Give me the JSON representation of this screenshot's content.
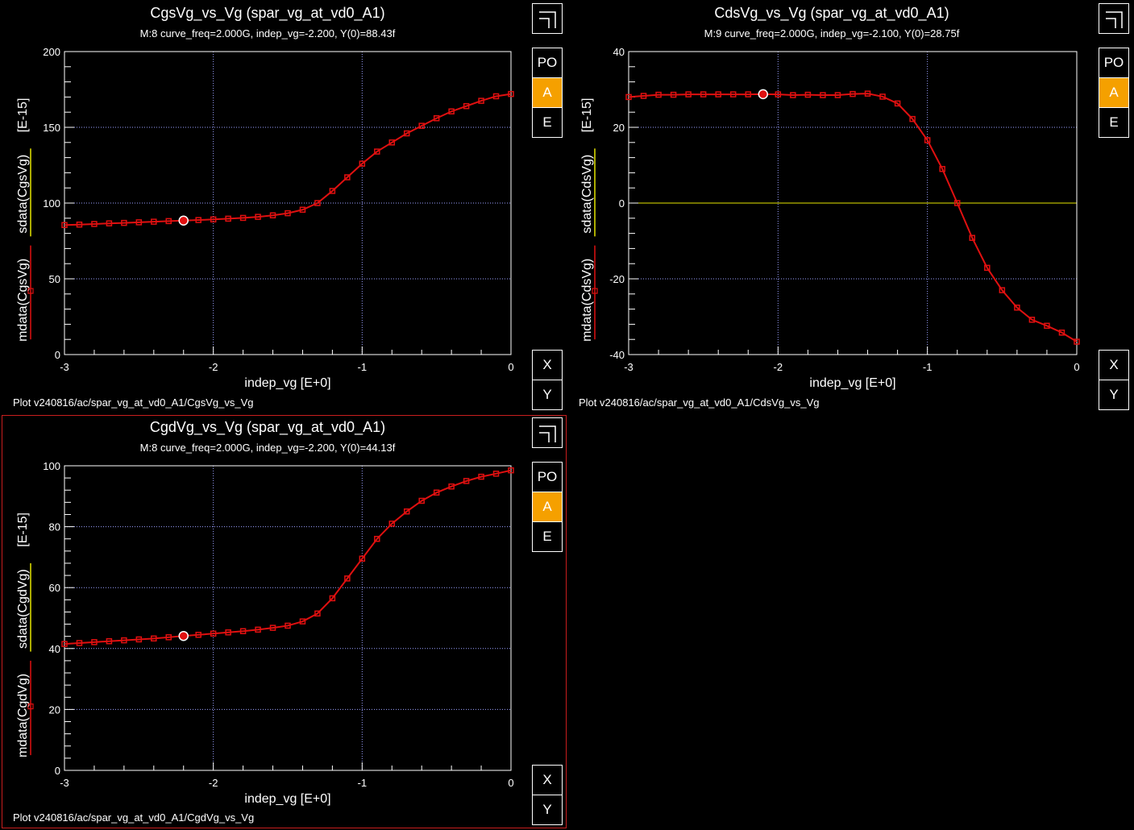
{
  "colors": {
    "curve": "#e01010",
    "grid": "#9aa0ff",
    "zero": "#e6e600",
    "accent": "#f5a000",
    "frame": "#c81e1e"
  },
  "buttons": {
    "po": "PO",
    "a": "A",
    "e": "E",
    "x": "X",
    "y": "Y",
    "corner_icon": "corner-layout-icon"
  },
  "panels": [
    {
      "id": "cgs",
      "title": "CgsVg_vs_Vg (spar_vg_at_vd0_A1)",
      "subtitle": "M:8 curve_freq=2.000G, indep_vg=-2.200, Y(0)=88.43f",
      "xlabel": "indep_vg  [E+0]",
      "ylabel_sdata": "sdata(CgsVg)",
      "ylabel_mdata": "mdata(CgsVg)",
      "ylabel_unit": "[E-15]",
      "path": "Plot v240816/ac/spar_vg_at_vd0_A1/CgsVg_vs_Vg",
      "selected": false
    },
    {
      "id": "cds",
      "title": "CdsVg_vs_Vg (spar_vg_at_vd0_A1)",
      "subtitle": "M:9 curve_freq=2.000G, indep_vg=-2.100, Y(0)=28.75f",
      "xlabel": "indep_vg  [E+0]",
      "ylabel_sdata": "sdata(CdsVg)",
      "ylabel_mdata": "mdata(CdsVg)",
      "ylabel_unit": "[E-15]",
      "path": "Plot v240816/ac/spar_vg_at_vd0_A1/CdsVg_vs_Vg",
      "selected": false
    },
    {
      "id": "cgd",
      "title": "CgdVg_vs_Vg (spar_vg_at_vd0_A1)",
      "subtitle": "M:8 curve_freq=2.000G, indep_vg=-2.200, Y(0)=44.13f",
      "xlabel": "indep_vg  [E+0]",
      "ylabel_sdata": "sdata(CgdVg)",
      "ylabel_mdata": "mdata(CgdVg)",
      "ylabel_unit": "[E-15]",
      "path": "Plot v240816/ac/spar_vg_at_vd0_A1/CgdVg_vs_Vg",
      "selected": true
    }
  ],
  "chart_data": [
    {
      "type": "line",
      "title": "CgsVg_vs_Vg (spar_vg_at_vd0_A1)",
      "xlabel": "indep_vg  [E+0]",
      "ylabel": "sdata(CgsVg) mdata(CgsVg) [E-15]",
      "xlim": [
        -3,
        0
      ],
      "ylim": [
        0,
        200
      ],
      "xticks": [
        -3,
        -2,
        -1,
        0
      ],
      "yticks": [
        0,
        50,
        100,
        150,
        200
      ],
      "grid": true,
      "marker": {
        "x": -2.2,
        "y": 88.43
      },
      "x": [
        -3,
        -2.9,
        -2.8,
        -2.7,
        -2.6,
        -2.5,
        -2.4,
        -2.3,
        -2.2,
        -2.1,
        -2,
        -1.9,
        -1.8,
        -1.7,
        -1.6,
        -1.5,
        -1.4,
        -1.3,
        -1.2,
        -1.1,
        -1,
        -0.9,
        -0.8,
        -0.7,
        -0.6,
        -0.5,
        -0.4,
        -0.3,
        -0.2,
        -0.1,
        0
      ],
      "values": [
        85.5,
        85.8,
        86.2,
        86.6,
        86.9,
        87.3,
        87.7,
        88.1,
        88.43,
        88.8,
        89.2,
        89.7,
        90.2,
        90.9,
        91.9,
        93.3,
        95.6,
        100,
        108,
        117,
        126,
        134,
        140,
        146,
        151,
        156,
        160.5,
        164,
        167.5,
        170.5,
        172
      ]
    },
    {
      "type": "line",
      "title": "CdsVg_vs_Vg (spar_vg_at_vd0_A1)",
      "xlabel": "indep_vg  [E+0]",
      "ylabel": "sdata(CdsVg) mdata(CdsVg) [E-15]",
      "xlim": [
        -3,
        0
      ],
      "ylim": [
        -40,
        40
      ],
      "xticks": [
        -3,
        -2,
        -1,
        0
      ],
      "yticks": [
        -40,
        -20,
        0,
        20,
        40
      ],
      "grid": true,
      "marker": {
        "x": -2.1,
        "y": 28.75
      },
      "x": [
        -3,
        -2.9,
        -2.8,
        -2.7,
        -2.6,
        -2.5,
        -2.4,
        -2.3,
        -2.2,
        -2.1,
        -2,
        -1.9,
        -1.8,
        -1.7,
        -1.6,
        -1.5,
        -1.4,
        -1.3,
        -1.2,
        -1.1,
        -1,
        -0.9,
        -0.8,
        -0.7,
        -0.6,
        -0.5,
        -0.4,
        -0.3,
        -0.2,
        -0.1,
        0
      ],
      "values": [
        28,
        28.3,
        28.6,
        28.6,
        28.7,
        28.7,
        28.7,
        28.7,
        28.7,
        28.75,
        28.7,
        28.5,
        28.6,
        28.5,
        28.5,
        28.8,
        28.9,
        28.1,
        26.3,
        22.2,
        16.6,
        9,
        0,
        -9.2,
        -17.1,
        -23,
        -27.6,
        -30.8,
        -32.4,
        -34.2,
        -36.6
      ]
    },
    {
      "type": "line",
      "title": "CgdVg_vs_Vg (spar_vg_at_vd0_A1)",
      "xlabel": "indep_vg  [E+0]",
      "ylabel": "sdata(CgdVg) mdata(CgdVg) [E-15]",
      "xlim": [
        -3,
        0
      ],
      "ylim": [
        0,
        100
      ],
      "xticks": [
        -3,
        -2,
        -1,
        0
      ],
      "yticks": [
        0,
        20,
        40,
        60,
        80,
        100
      ],
      "grid": true,
      "marker": {
        "x": -2.2,
        "y": 44.13
      },
      "x": [
        -3,
        -2.9,
        -2.8,
        -2.7,
        -2.6,
        -2.5,
        -2.4,
        -2.3,
        -2.2,
        -2.1,
        -2,
        -1.9,
        -1.8,
        -1.7,
        -1.6,
        -1.5,
        -1.4,
        -1.3,
        -1.2,
        -1.1,
        -1,
        -0.9,
        -0.8,
        -0.7,
        -0.6,
        -0.5,
        -0.4,
        -0.3,
        -0.2,
        -0.1,
        0
      ],
      "values": [
        41.5,
        41.8,
        42.1,
        42.4,
        42.7,
        43,
        43.3,
        43.7,
        44.13,
        44.5,
        44.9,
        45.3,
        45.7,
        46.2,
        46.8,
        47.5,
        48.9,
        51.5,
        56.5,
        63,
        69.5,
        76,
        81,
        85,
        88.5,
        91.2,
        93.2,
        95,
        96.4,
        97.4,
        98.5
      ]
    }
  ]
}
